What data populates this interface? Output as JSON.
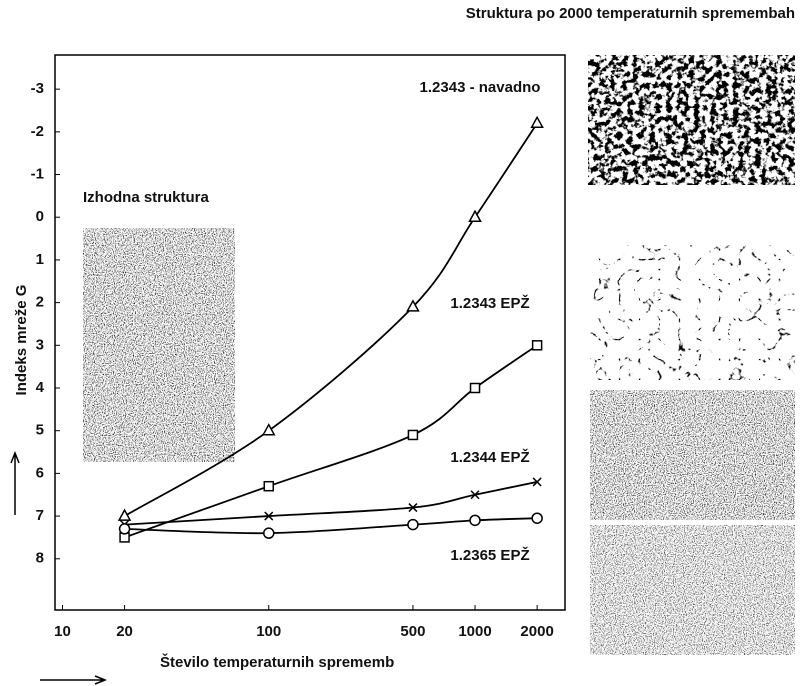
{
  "chart_data": {
    "type": "line",
    "title": "Struktura po 2000 temperaturnih spremembah",
    "annotation": "Izhodna struktura",
    "x_label": "Število temperaturnih sprememb",
    "y_label": "Indeks mreže G",
    "x_scale": "log",
    "x": [
      20,
      100,
      500,
      1000,
      2000
    ],
    "xlim": [
      9.2,
      2730
    ],
    "xticks": [
      10,
      20,
      100,
      500,
      1000,
      2000
    ],
    "ylim": [
      9.2,
      -3.8
    ],
    "yticks": [
      -3,
      -2,
      -1,
      0,
      1,
      2,
      3,
      4,
      5,
      6,
      7,
      8
    ],
    "grid": false,
    "series": [
      {
        "name": "1.2343 - navadno",
        "color": "#000000",
        "marker": "triangle",
        "values": [
          7.0,
          5.0,
          2.1,
          0.0,
          -2.2
        ]
      },
      {
        "name": "1.2343 EPŽ",
        "color": "#000000",
        "marker": "square",
        "values": [
          7.5,
          6.3,
          5.1,
          4.0,
          3.0
        ]
      },
      {
        "name": "1.2344 EPŽ",
        "color": "#000000",
        "marker": "cross",
        "values": [
          7.2,
          7.0,
          6.8,
          6.5,
          6.2
        ]
      },
      {
        "name": "1.2365 EPŽ",
        "color": "#000000",
        "marker": "circle",
        "values": [
          7.3,
          7.4,
          7.2,
          7.1,
          7.05
        ]
      }
    ]
  }
}
